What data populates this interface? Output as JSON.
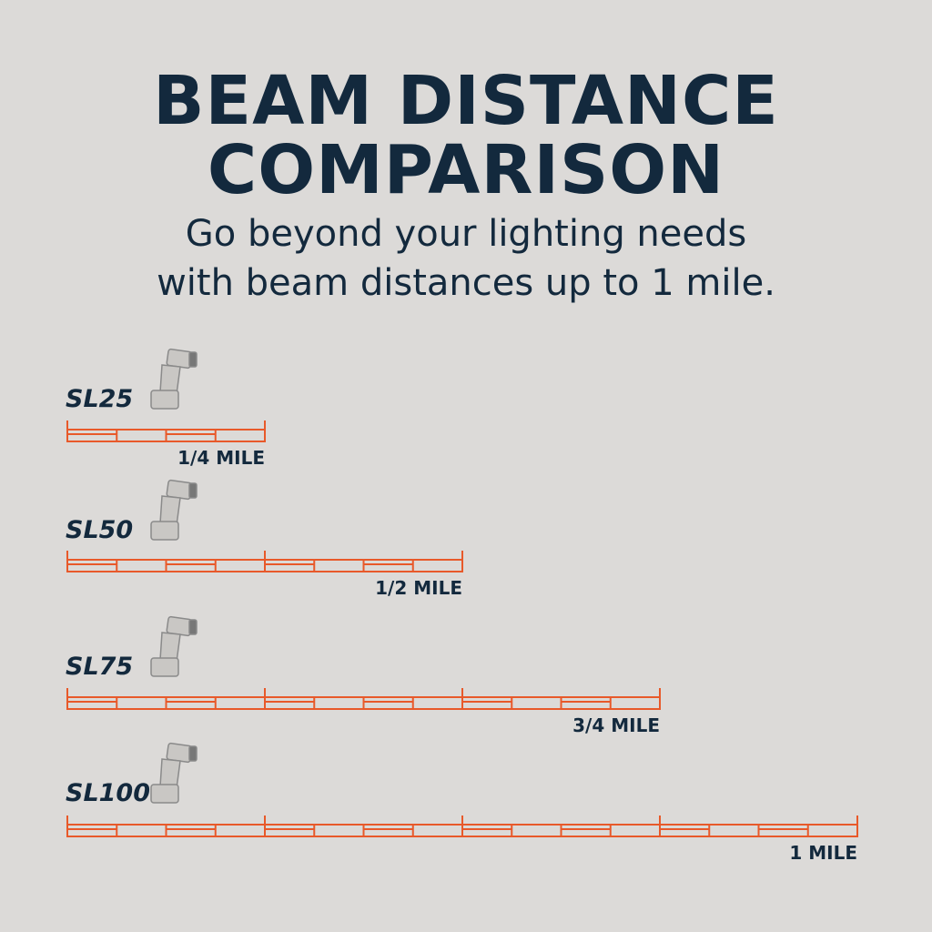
{
  "chart_data": {
    "type": "hbar",
    "title_lines": [
      "BEAM DISTANCE",
      "COMPARISON"
    ],
    "subtitle_lines": [
      "Go beyond your lighting needs",
      "with beam distances up to 1 mile."
    ],
    "categories": [
      "SL25",
      "SL50",
      "SL75",
      "SL100"
    ],
    "values": [
      0.25,
      0.5,
      0.75,
      1
    ],
    "value_labels": [
      "1/4 MILE",
      "1/2 MILE",
      "3/4 MILE",
      "1 MILE"
    ],
    "xlim": [
      0,
      1
    ],
    "color": "#e8592a"
  }
}
